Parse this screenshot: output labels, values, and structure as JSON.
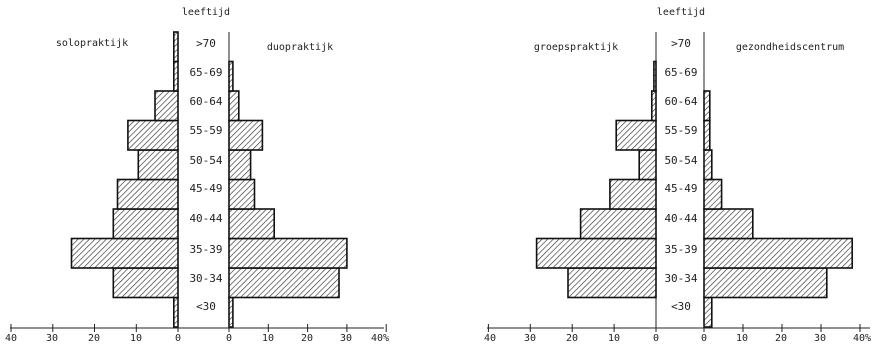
{
  "chart_data": [
    {
      "type": "bar",
      "orientation": "horizontal-pyramid",
      "axis_title": "leeftijd",
      "categories": [
        "<30",
        "30-34",
        "35-39",
        "40-44",
        "45-49",
        "50-54",
        "55-59",
        "60-64",
        "65-69",
        ">70"
      ],
      "x_tick_labels": [
        "40",
        "30",
        "20",
        "10",
        "0",
        "0",
        "10",
        "20",
        "30",
        "40%"
      ],
      "xlim": [
        0,
        40
      ],
      "grid": false,
      "series": [
        {
          "name": "solopraktijk",
          "side": "left",
          "values": [
            1,
            15.5,
            25.5,
            15.5,
            14.5,
            9.5,
            12,
            5.5,
            1,
            1
          ]
        },
        {
          "name": "duopraktijk",
          "side": "right",
          "values": [
            1,
            28,
            30,
            11.5,
            6.5,
            5.5,
            8.5,
            2.5,
            1,
            0
          ]
        }
      ]
    },
    {
      "type": "bar",
      "orientation": "horizontal-pyramid",
      "axis_title": "leeftijd",
      "categories": [
        "<30",
        "30-34",
        "35-39",
        "40-44",
        "45-49",
        "50-54",
        "55-59",
        "60-64",
        "65-69",
        ">70"
      ],
      "x_tick_labels": [
        "40",
        "30",
        "20",
        "10",
        "0",
        "0",
        "10",
        "20",
        "30",
        "40%"
      ],
      "xlim": [
        0,
        40
      ],
      "grid": false,
      "series": [
        {
          "name": "groepspraktijk",
          "side": "left",
          "values": [
            0,
            21,
            28.5,
            18,
            11,
            4,
            9.5,
            1,
            0.5,
            0
          ]
        },
        {
          "name": "gezondheidscentrum",
          "side": "right",
          "values": [
            2,
            31.5,
            38,
            12.5,
            4.5,
            2,
            1.5,
            1.5,
            0,
            0
          ]
        }
      ]
    }
  ]
}
